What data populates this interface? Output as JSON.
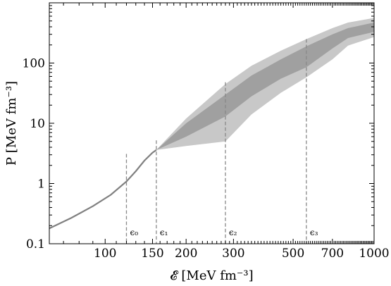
{
  "chart_data": {
    "type": "area",
    "title": "",
    "xlabel": "𝓔 [MeV fm⁻³]",
    "ylabel": "P [MeV fm⁻³]",
    "x_scale": "log",
    "y_scale": "log",
    "xlim": [
      62,
      1000
    ],
    "ylim": [
      0.1,
      1000
    ],
    "x_ticks": [
      {
        "value": 100,
        "label": "100"
      },
      {
        "value": 150,
        "label": "150"
      },
      {
        "value": 200,
        "label": "200"
      },
      {
        "value": 300,
        "label": "300"
      },
      {
        "value": 500,
        "label": "500"
      },
      {
        "value": 700,
        "label": "700"
      },
      {
        "value": 1000,
        "label": "1000"
      }
    ],
    "y_ticks": [
      {
        "value": 0.1,
        "label": "0.1"
      },
      {
        "value": 1,
        "label": "1"
      },
      {
        "value": 10,
        "label": "10"
      },
      {
        "value": 100,
        "label": "100"
      }
    ],
    "epsilon_markers": [
      {
        "value": 120,
        "label": "ϵ₀",
        "top": 3.1
      },
      {
        "value": 155,
        "label": "ϵ₁",
        "top": 5.2
      },
      {
        "value": 280,
        "label": "ϵ₂",
        "top": 48
      },
      {
        "value": 560,
        "label": "ϵ₃",
        "top": 250
      }
    ],
    "series": [
      {
        "kind": "line",
        "color": "#808080",
        "x": [
          62,
          75,
          90,
          105,
          120,
          130,
          140,
          150,
          155
        ],
        "y": [
          0.18,
          0.27,
          0.42,
          0.65,
          1.08,
          1.6,
          2.4,
          3.25,
          3.6
        ]
      },
      {
        "kind": "band",
        "color": "#c8c8c8",
        "x": [
          155,
          200,
          280,
          350,
          450,
          560,
          700,
          800,
          1000
        ],
        "upper": [
          3.6,
          12,
          45,
          90,
          160,
          250,
          380,
          470,
          560
        ],
        "lower": [
          3.6,
          4.2,
          5.0,
          14,
          32,
          58,
          115,
          195,
          270
        ]
      },
      {
        "kind": "band",
        "color": "#a0a0a0",
        "x": [
          155,
          200,
          280,
          350,
          450,
          560,
          700,
          800,
          1000
        ],
        "upper": [
          3.6,
          10,
          30,
          62,
          115,
          190,
          300,
          380,
          470
        ],
        "lower": [
          3.6,
          6,
          13,
          28,
          55,
          85,
          175,
          260,
          330
        ]
      }
    ]
  }
}
